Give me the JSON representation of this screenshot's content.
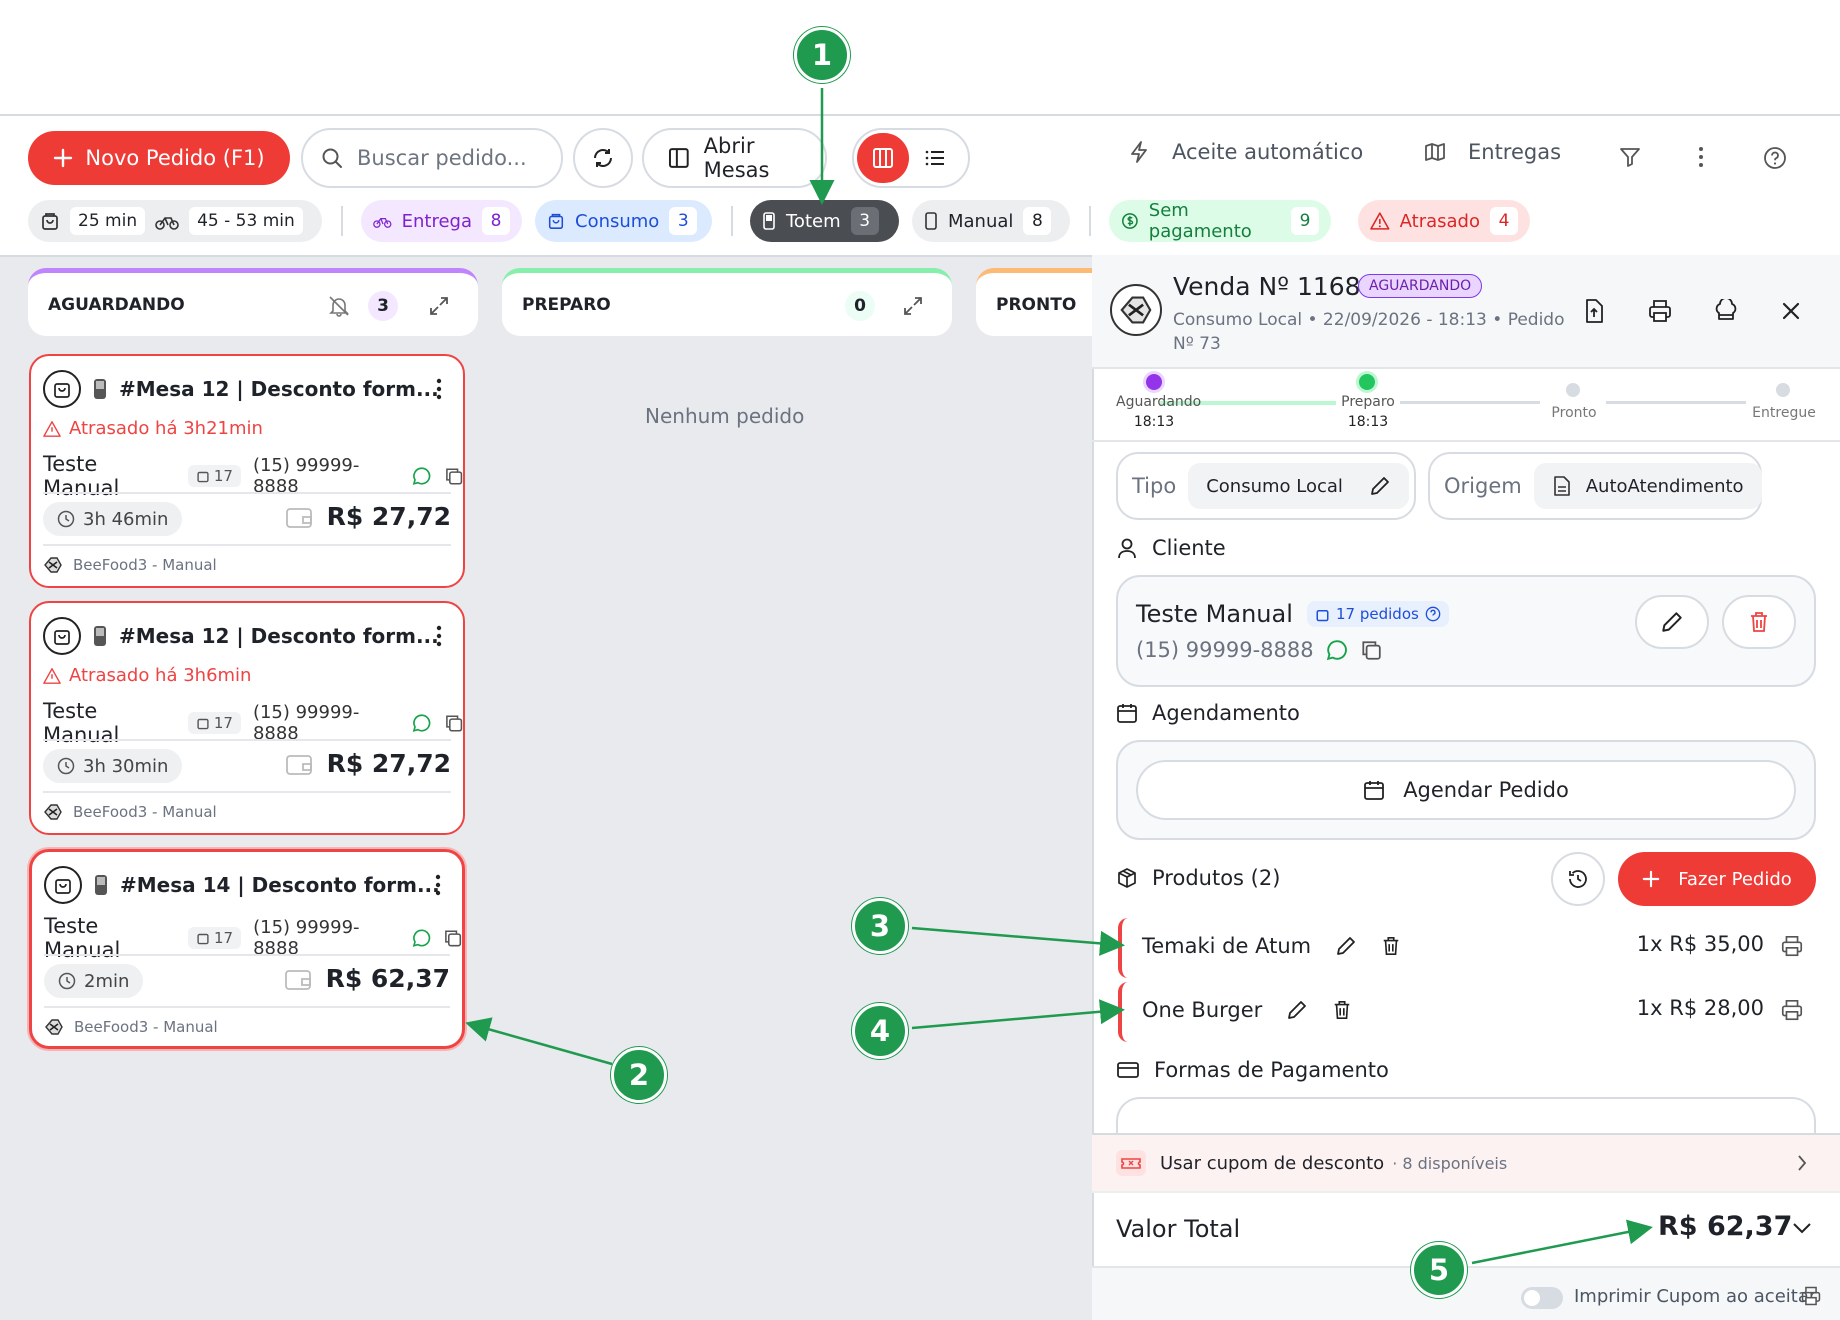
{
  "toolbar": {
    "new_order": "Novo Pedido (F1)",
    "search_placeholder": "Buscar pedido...",
    "open_tables": "Abrir Mesas",
    "auto_accept": "Aceite automático",
    "deliveries": "Entregas"
  },
  "chips": {
    "time_local": "25 min",
    "time_delivery": "45 - 53 min",
    "entrega": {
      "label": "Entrega",
      "count": "8"
    },
    "consumo": {
      "label": "Consumo",
      "count": "3"
    },
    "totem": {
      "label": "Totem",
      "count": "3"
    },
    "manual": {
      "label": "Manual",
      "count": "8"
    },
    "sem_pagamento": {
      "label": "Sem pagamento",
      "count": "9"
    },
    "atrasado": {
      "label": "Atrasado",
      "count": "4"
    }
  },
  "columns": {
    "aguardando": {
      "title": "AGUARDANDO",
      "count": "3"
    },
    "preparo": {
      "title": "PREPARO",
      "count": "0",
      "empty": "Nenhum pedido"
    },
    "pronto": {
      "title": "PRONTO"
    }
  },
  "cards": [
    {
      "title": "#Mesa 12 | Desconto form...",
      "late": "Atrasado há 3h21min",
      "customer": "Teste Manual",
      "orders": "17",
      "phone": "(15) 99999-8888",
      "elapsed": "3h 46min",
      "price": "R$ 27,72",
      "source": "BeeFood3 - Manual"
    },
    {
      "title": "#Mesa 12 | Desconto form...",
      "late": "Atrasado há 3h6min",
      "customer": "Teste Manual",
      "orders": "17",
      "phone": "(15) 99999-8888",
      "elapsed": "3h 30min",
      "price": "R$ 27,72",
      "source": "BeeFood3 - Manual"
    },
    {
      "title": "#Mesa 14 | Desconto form...",
      "customer": "Teste Manual",
      "orders": "17",
      "phone": "(15) 99999-8888",
      "elapsed": "2min",
      "price": "R$ 62,37",
      "source": "BeeFood3 - Manual"
    }
  ],
  "detail": {
    "title": "Venda Nº 1168",
    "status": "AGUARDANDO",
    "subtitle_line1": "Consumo Local • 22/09/2026 - 18:13 • Pedido",
    "subtitle_line2": "Nº 73",
    "steps": [
      {
        "label": "Aguardando",
        "time": "18:13"
      },
      {
        "label": "Preparo",
        "time": "18:13"
      },
      {
        "label": "Pronto"
      },
      {
        "label": "Entregue"
      }
    ],
    "tipo_label": "Tipo",
    "tipo_value": "Consumo Local",
    "origem_label": "Origem",
    "origem_value": "AutoAtendimento",
    "cliente_label": "Cliente",
    "client_name": "Teste Manual",
    "client_orders": "17 pedidos",
    "client_phone": "(15) 99999-8888",
    "agendamento_label": "Agendamento",
    "agendar_button": "Agendar Pedido",
    "produtos_label": "Produtos (2)",
    "fazer_pedido": "Fazer Pedido",
    "products": [
      {
        "name": "Temaki de Atum",
        "price": "1x R$ 35,00"
      },
      {
        "name": "One Burger",
        "price": "1x R$ 28,00"
      }
    ],
    "pagamento_label": "Formas de Pagamento",
    "cupom_label": "Usar cupom de desconto",
    "cupom_available": "· 8 disponíveis",
    "total_label": "Valor Total",
    "total_value": "R$ 62,37",
    "print_toggle_label": "Imprimir Cupom ao aceitar"
  },
  "annotations": [
    "1",
    "2",
    "3",
    "4",
    "5"
  ],
  "colors": {
    "accent_red": "#ef3b36",
    "annotation_green": "#1f9a4f",
    "status_purple": "#7c3aed"
  }
}
